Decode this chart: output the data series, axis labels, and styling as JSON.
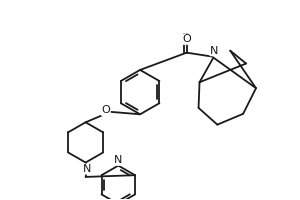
{
  "line_color": "#1a1a1a",
  "line_width": 1.3,
  "bg_color": "#ffffff",
  "figsize": [
    3.0,
    2.0
  ],
  "dpi": 100,
  "xlim": [
    0,
    10
  ],
  "ylim": [
    0,
    6.67
  ]
}
